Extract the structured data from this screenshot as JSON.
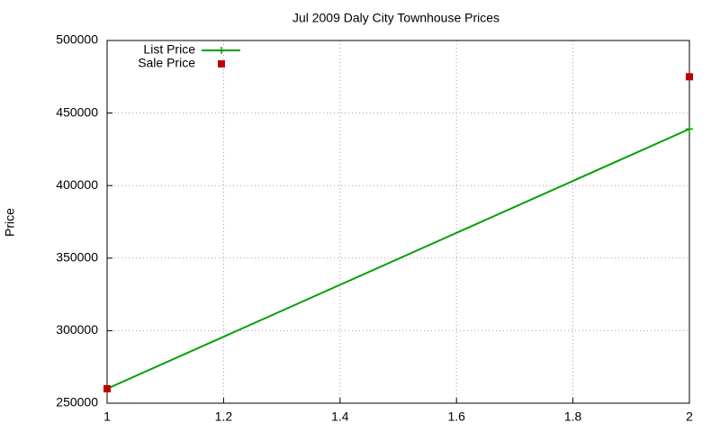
{
  "chart_data": {
    "type": "line",
    "title": "Jul 2009 Daly City Townhouse Prices",
    "y_label": "Price",
    "x": [
      1,
      2
    ],
    "series": [
      {
        "name": "List Price",
        "color": "#00a000",
        "mode": "lines+points",
        "values": [
          260000,
          439000
        ]
      },
      {
        "name": "Sale Price",
        "color": "#c00000",
        "mode": "points",
        "values": [
          260000,
          475000
        ]
      }
    ],
    "xlim": [
      1,
      2
    ],
    "xticks": [
      1,
      1.2,
      1.4,
      1.6,
      1.8,
      2
    ],
    "ylim": [
      250000,
      500000
    ],
    "yticks": [
      250000,
      300000,
      350000,
      400000,
      450000,
      500000
    ],
    "grid": true,
    "legend": "top-left"
  }
}
